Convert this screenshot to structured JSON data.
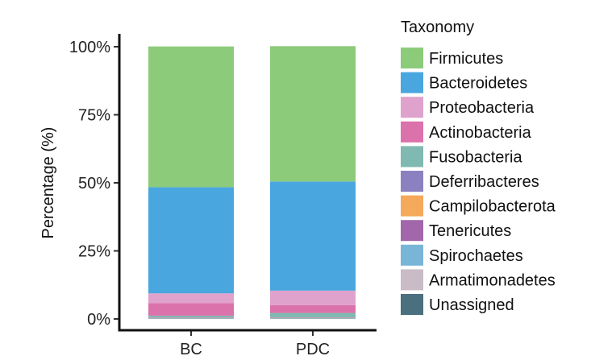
{
  "chart_data": {
    "type": "bar",
    "stacked": true,
    "categories": [
      "BC",
      "PDC"
    ],
    "ylabel": "Percentage (%)",
    "xlabel": "",
    "ylim": [
      0,
      100
    ],
    "yticks": [
      "0%",
      "25%",
      "50%",
      "75%",
      "100%"
    ],
    "legend": {
      "title": "Taxonomy",
      "placement": "right"
    },
    "series": [
      {
        "name": "Unassigned",
        "color": "#4a6f7e",
        "values": [
          0.1,
          0.1
        ]
      },
      {
        "name": "Armatimonadetes",
        "color": "#c9bcc6",
        "values": [
          0.1,
          0.1
        ]
      },
      {
        "name": "Spirochaetes",
        "color": "#78b5d6",
        "values": [
          0.1,
          0.1
        ]
      },
      {
        "name": "Tenericutes",
        "color": "#a267aa",
        "values": [
          0.1,
          0.1
        ]
      },
      {
        "name": "Campilobacterota",
        "color": "#f5a95b",
        "values": [
          0.1,
          0.1
        ]
      },
      {
        "name": "Deferribacteres",
        "color": "#8c81c0",
        "values": [
          0.1,
          0.1
        ]
      },
      {
        "name": "Fusobacteria",
        "color": "#7fb9b2",
        "values": [
          0.6,
          1.6
        ]
      },
      {
        "name": "Actinobacteria",
        "color": "#dc72ab",
        "values": [
          4.6,
          2.9
        ]
      },
      {
        "name": "Proteobacteria",
        "color": "#dfa2cc",
        "values": [
          3.6,
          5.3
        ]
      },
      {
        "name": "Bacteroidetes",
        "color": "#4aa6df",
        "values": [
          39.0,
          40.1
        ]
      },
      {
        "name": "Firmicutes",
        "color": "#8ccb7a",
        "values": [
          51.7,
          49.7
        ]
      }
    ]
  }
}
